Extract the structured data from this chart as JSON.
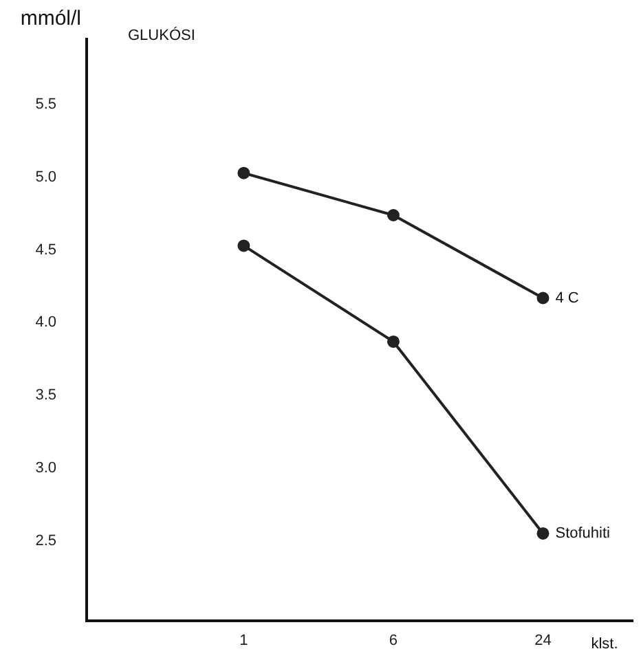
{
  "chart_data": {
    "type": "line",
    "title": "GLUKÓSI",
    "xlabel": "klst.",
    "ylabel": "mmól/l",
    "categories": [
      "1",
      "6",
      "24"
    ],
    "series": [
      {
        "name": "4 C",
        "color": "#222222",
        "values": [
          5.03,
          4.74,
          4.17
        ]
      },
      {
        "name": "Stofuhiti",
        "color": "#222222",
        "values": [
          4.53,
          3.87,
          2.55
        ]
      }
    ],
    "ylim": [
      1.95,
      5.95
    ],
    "yticks": [
      2.5,
      {
        "value": 3,
        "label": "3.0"
      },
      3.5,
      {
        "value": 4,
        "label": "4.0"
      },
      4.5,
      {
        "value": 5,
        "label": "5.0"
      },
      5.5
    ],
    "grid": false,
    "legend": false,
    "marker": "circle",
    "line_style": "solid"
  }
}
